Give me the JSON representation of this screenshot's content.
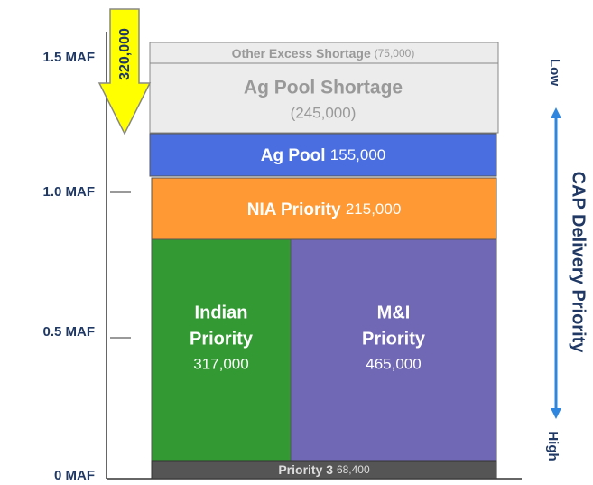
{
  "axis": {
    "labels": [
      "1.5 MAF",
      "1.0 MAF",
      "0.5 MAF",
      "0 MAF"
    ]
  },
  "arrow": {
    "label": "320,000"
  },
  "blocks": [
    {
      "name": "Other Excess Shortage",
      "value": "(75,000)"
    },
    {
      "name": "Ag Pool Shortage",
      "value": "(245,000)"
    },
    {
      "name": "Ag Pool",
      "value": "155,000"
    },
    {
      "name": "NIA Priority",
      "value": "215,000"
    },
    {
      "name_lines": [
        "Indian",
        "Priority"
      ],
      "value": "317,000"
    },
    {
      "name_lines": [
        "M&I",
        "Priority"
      ],
      "value": "465,000"
    },
    {
      "name": "Priority 3",
      "value": "68,400"
    }
  ],
  "priority": {
    "title": "CAP Delivery Priority",
    "low": "Low",
    "high": "High"
  }
}
